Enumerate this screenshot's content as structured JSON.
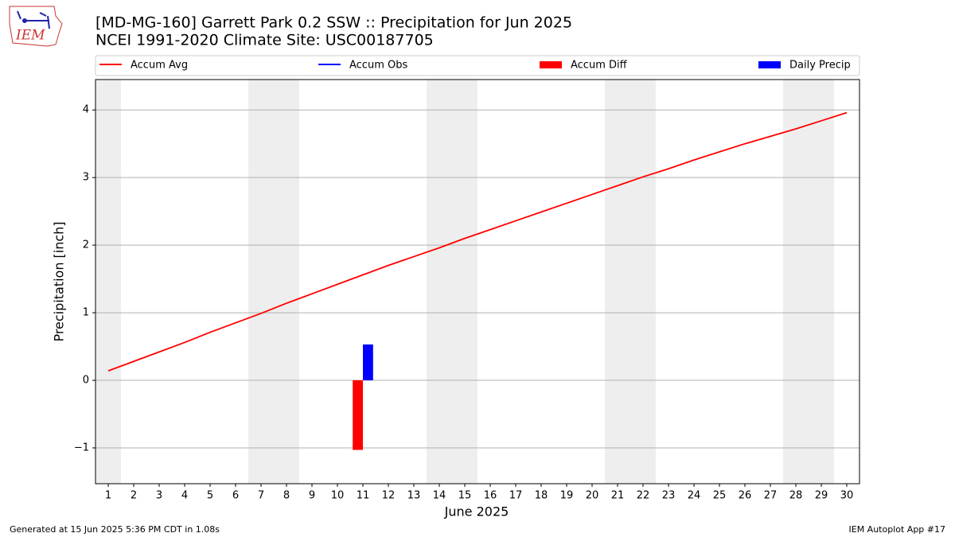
{
  "logo_text": "IEM",
  "footer_left": "Generated at 15 Jun 2025 5:36 PM CDT in 1.08s",
  "footer_right": "IEM Autoplot App #17",
  "chart_data": {
    "type": "line",
    "title": "[MD-MG-160] Garrett Park 0.2 SSW :: Precipitation for Jun 2025",
    "subtitle": "NCEI 1991-2020 Climate Site: USC00187705",
    "xlabel": "June 2025",
    "ylabel": "Precipitation [inch]",
    "x": [
      1,
      2,
      3,
      4,
      5,
      6,
      7,
      8,
      9,
      10,
      11,
      12,
      13,
      14,
      15,
      16,
      17,
      18,
      19,
      20,
      21,
      22,
      23,
      24,
      25,
      26,
      27,
      28,
      29,
      30
    ],
    "shaded_days": [
      1,
      7,
      8,
      14,
      15,
      21,
      22,
      28,
      29
    ],
    "series": [
      {
        "name": "Accum Avg",
        "kind": "line",
        "color": "#ff0000",
        "values": [
          0.14,
          0.28,
          0.42,
          0.56,
          0.71,
          0.85,
          0.99,
          1.14,
          1.28,
          1.42,
          1.56,
          1.7,
          1.83,
          1.96,
          2.1,
          2.23,
          2.36,
          2.49,
          2.62,
          2.75,
          2.88,
          3.01,
          3.13,
          3.26,
          3.38,
          3.5,
          3.61,
          3.72,
          3.84,
          3.96
        ]
      },
      {
        "name": "Accum Obs",
        "kind": "line",
        "color": "#0000ff",
        "values": [
          null,
          null,
          null,
          null,
          null,
          null,
          null,
          null,
          null,
          null,
          null,
          null,
          null,
          null,
          null,
          null,
          null,
          null,
          null,
          null,
          null,
          null,
          null,
          null,
          null,
          null,
          null,
          null,
          null,
          null
        ]
      },
      {
        "name": "Accum Diff",
        "kind": "bar",
        "offset": "left",
        "color": "#ff0000",
        "values": [
          null,
          null,
          null,
          null,
          null,
          null,
          null,
          null,
          null,
          null,
          -1.03,
          null,
          null,
          null,
          null,
          null,
          null,
          null,
          null,
          null,
          null,
          null,
          null,
          null,
          null,
          null,
          null,
          null,
          null,
          null
        ]
      },
      {
        "name": "Daily Precip",
        "kind": "bar",
        "offset": "right",
        "color": "#0000ff",
        "values": [
          null,
          null,
          null,
          null,
          null,
          null,
          null,
          null,
          null,
          null,
          0.53,
          null,
          null,
          null,
          null,
          null,
          null,
          null,
          null,
          null,
          null,
          null,
          null,
          null,
          null,
          null,
          null,
          null,
          null,
          null
        ]
      }
    ],
    "xlim": [
      0.5,
      30.5
    ],
    "xticks": [
      1,
      2,
      3,
      4,
      5,
      6,
      7,
      8,
      9,
      10,
      11,
      12,
      13,
      14,
      15,
      16,
      17,
      18,
      19,
      20,
      21,
      22,
      23,
      24,
      25,
      26,
      27,
      28,
      29,
      30
    ],
    "ylim": [
      -1.53,
      4.45
    ],
    "yticks": [
      {
        "value": -1,
        "label": "−1"
      },
      0,
      1,
      2,
      3,
      4
    ],
    "grid": true,
    "legend": "top"
  }
}
